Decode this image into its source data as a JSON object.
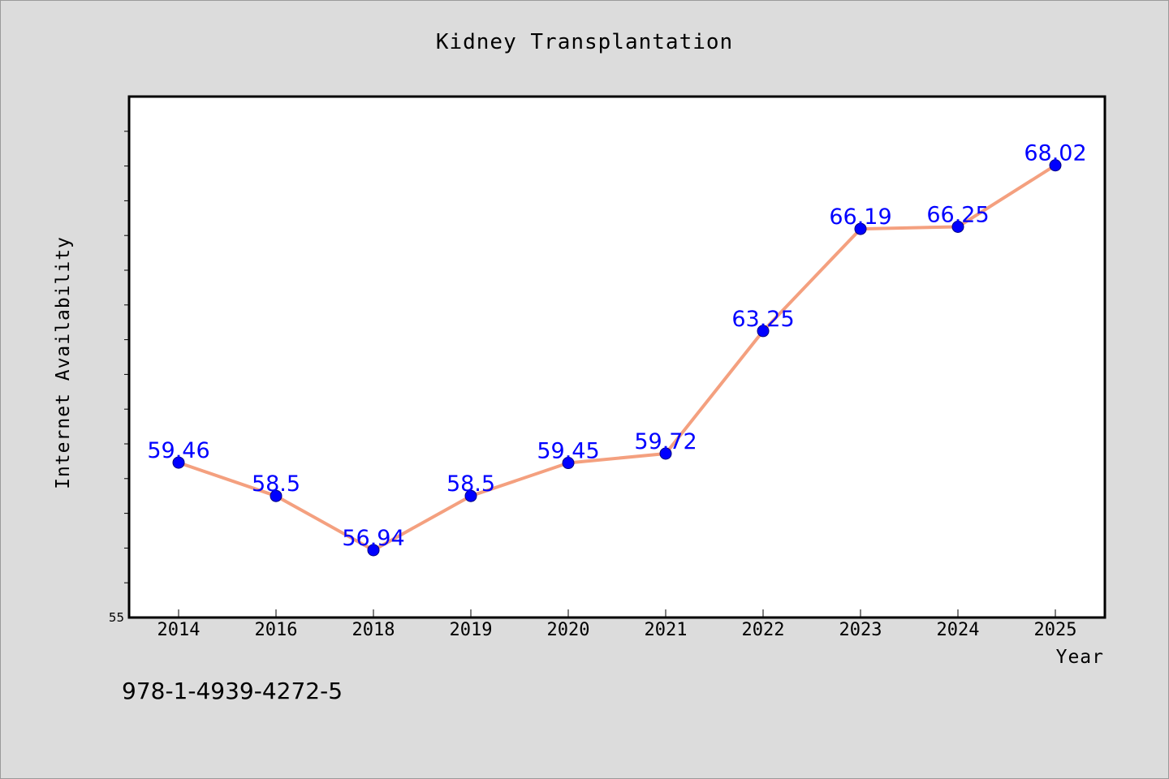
{
  "chart_data": {
    "type": "line",
    "title": "Kidney Transplantation",
    "xlabel": "Year",
    "ylabel": "Internet Availability",
    "categories": [
      "2014",
      "2016",
      "2018",
      "2019",
      "2020",
      "2021",
      "2022",
      "2023",
      "2024",
      "2025"
    ],
    "series": [
      {
        "values": [
          59.46,
          58.5,
          56.94,
          58.5,
          59.45,
          59.72,
          63.25,
          66.19,
          66.25,
          68.02
        ],
        "line_color": "#f4a07f",
        "marker_color": "#0000ff"
      }
    ],
    "data_labels": [
      "59.46",
      "58.5",
      "56.94",
      "58.5",
      "59.45",
      "59.72",
      "63.25",
      "66.19",
      "66.25",
      "68.02"
    ],
    "ylim": [
      55,
      70
    ],
    "ytick_labels": [
      "55"
    ],
    "grid": false,
    "legend": "none",
    "data_label_color": "#0000ff"
  },
  "footer": {
    "isbn": "978-1-4939-4272-5"
  }
}
